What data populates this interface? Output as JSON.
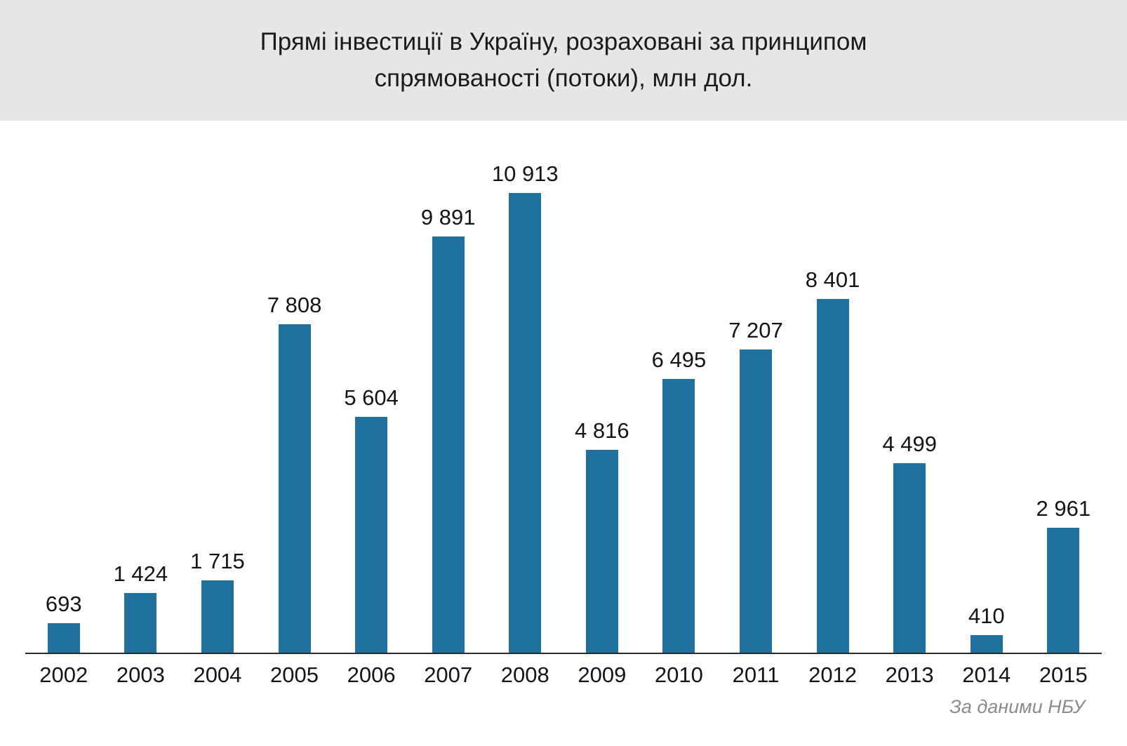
{
  "header": {
    "title_line1": "Прямі інвестиції в Україну, розраховані за принципом",
    "title_line2": "спрямованості (потоки), млн дол."
  },
  "chart_data": {
    "type": "bar",
    "title": "Прямі інвестиції в Україну, розраховані за принципом спрямованості (потоки), млн дол.",
    "categories": [
      "2002",
      "2003",
      "2004",
      "2005",
      "2006",
      "2007",
      "2008",
      "2009",
      "2010",
      "2011",
      "2012",
      "2013",
      "2014",
      "2015"
    ],
    "values": [
      693,
      1424,
      1715,
      7808,
      5604,
      9891,
      10913,
      4816,
      6495,
      7207,
      8401,
      4499,
      410,
      2961
    ],
    "value_labels": [
      "693",
      "1 424",
      "1 715",
      "7 808",
      "5 604",
      "9 891",
      "10 913",
      "4 816",
      "6 495",
      "7 207",
      "8 401",
      "4 499",
      "410",
      "2 961"
    ],
    "xlabel": "",
    "ylabel": "млн дол.",
    "ylim": [
      0,
      11000
    ],
    "bar_color": "#20719F",
    "grid": false,
    "legend": "none"
  },
  "footer": {
    "source": "За даними НБУ"
  }
}
